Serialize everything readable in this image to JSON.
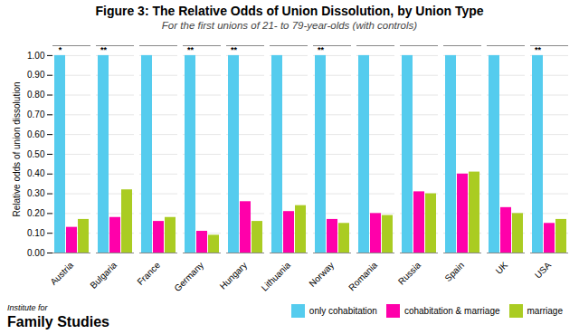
{
  "chart_data": {
    "type": "bar",
    "title": "Figure 3: The Relative Odds of Union Dissolution, by Union Type",
    "subtitle": "For the first unions of 21- to 79-year-olds (with controls)",
    "ylabel": "Relative odds of union dissolution",
    "categories": [
      "Austria",
      "Bulgaria",
      "France",
      "Germany",
      "Hungary",
      "Lithuania",
      "Norway",
      "Romania",
      "Russia",
      "Spain",
      "UK",
      "USA"
    ],
    "series": [
      {
        "name": "only cohabitation",
        "color": "#55CCEE",
        "values": [
          1.0,
          1.0,
          1.0,
          1.0,
          1.0,
          1.0,
          1.0,
          1.0,
          1.0,
          1.0,
          1.0,
          1.0
        ],
        "annotations": [
          "*",
          "**",
          null,
          "**",
          "**",
          null,
          "**",
          null,
          null,
          null,
          null,
          "**"
        ]
      },
      {
        "name": "cohabitation & marriage",
        "color": "#FF00AA",
        "values": [
          0.13,
          0.18,
          0.16,
          0.11,
          0.26,
          0.21,
          0.17,
          0.2,
          0.31,
          0.4,
          0.23,
          0.15
        ]
      },
      {
        "name": "marriage",
        "color": "#AACC22",
        "values": [
          0.17,
          0.32,
          0.18,
          0.09,
          0.16,
          0.24,
          0.15,
          0.19,
          0.3,
          0.41,
          0.2,
          0.17
        ]
      }
    ],
    "ylim": [
      0.0,
      1.05
    ],
    "yticks": [
      {
        "value": 0.0,
        "label": "0.00"
      },
      {
        "value": 0.1,
        "label": "0.10"
      },
      {
        "value": 0.2,
        "label": "0.20"
      },
      {
        "value": 0.3,
        "label": "0.30"
      },
      {
        "value": 0.4,
        "label": "0.40"
      },
      {
        "value": 0.5,
        "label": "0.50"
      },
      {
        "value": 0.6,
        "label": "0.60"
      },
      {
        "value": 0.7,
        "label": "0.70"
      },
      {
        "value": 0.8,
        "label": "0.80"
      },
      {
        "value": 0.9,
        "label": "0.90"
      },
      {
        "value": 1.0,
        "label": "1.00"
      }
    ],
    "grid": true,
    "legend": "lower right",
    "watermark": [
      "Institute for",
      "Family Studies"
    ]
  }
}
